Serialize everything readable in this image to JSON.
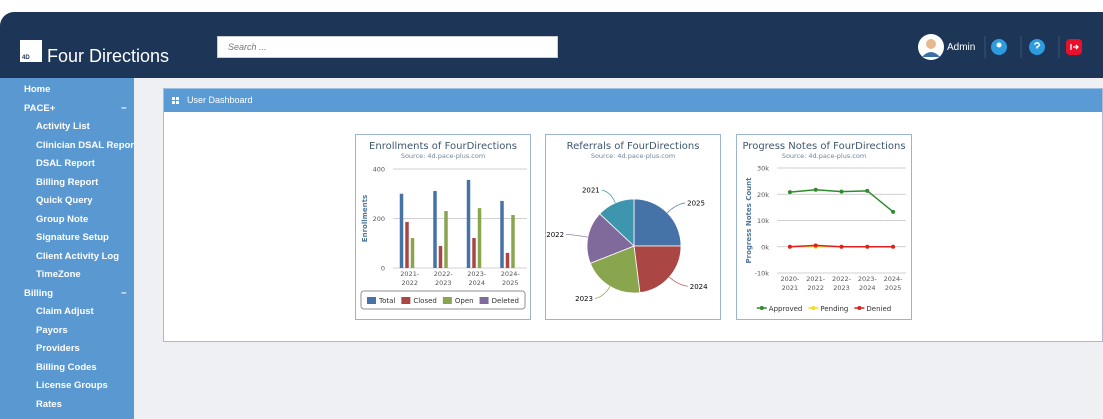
{
  "header": {
    "logo_badge": "4D",
    "logo": "Four Directions",
    "search_placeholder": "Search ...",
    "user": "Admin"
  },
  "sidebar": {
    "home": "Home",
    "groups": [
      {
        "title": "PACE+",
        "toggle": "−",
        "items": [
          "Activity List",
          "Clinician DSAL Report",
          "DSAL Report",
          "Billing Report",
          "Quick Query",
          "Group Note",
          "Signature Setup",
          "Client Activity Log",
          "TimeZone"
        ]
      },
      {
        "title": "Billing",
        "toggle": "−",
        "items": [
          "Claim Adjust",
          "Payors",
          "Providers",
          "Billing Codes",
          "License Groups",
          "Rates"
        ]
      }
    ]
  },
  "panel": {
    "title": "User Dashboard"
  },
  "chart_data": [
    {
      "type": "bar",
      "title": "Enrollments of FourDirections",
      "subtitle": "Source: 4d.pace-plus.com",
      "y_label": "Enrollments",
      "categories": [
        "2021-2022",
        "2022-2023",
        "2023-2024",
        "2024-2025"
      ],
      "series": [
        {
          "name": "Total",
          "color": "#4572a7",
          "values": [
            300,
            311,
            356,
            271
          ]
        },
        {
          "name": "Closed",
          "color": "#aa4643",
          "values": [
            186,
            89,
            121,
            61
          ]
        },
        {
          "name": "Open",
          "color": "#89a54e",
          "values": [
            121,
            230,
            242,
            214
          ]
        },
        {
          "name": "Deleted",
          "color": "#80699b",
          "values": [
            0,
            0,
            0,
            0
          ]
        }
      ],
      "ylim": [
        0,
        400
      ],
      "yticks": [
        0,
        200,
        400
      ],
      "grid": true,
      "legend": "bottom"
    },
    {
      "type": "pie",
      "title": "Referrals of FourDirections",
      "subtitle": "Source: 4d.pace-plus.com",
      "categories": [
        "2025",
        "2024",
        "2023",
        "2022",
        "2021"
      ],
      "values": [
        25,
        23,
        21,
        18,
        13
      ],
      "colors": [
        "#4572a7",
        "#aa4643",
        "#89a54e",
        "#80699b",
        "#3d96ae"
      ]
    },
    {
      "type": "line",
      "title": "Progress Notes of FourDirections",
      "subtitle": "Source: 4d.pace-plus.com",
      "y_label": "Progress Notes Count",
      "categories": [
        "2020-2021",
        "2021-2022",
        "2022-2023",
        "2023-2024",
        "2024-2025"
      ],
      "series": [
        {
          "name": "Approved",
          "color": "#2e8b2e",
          "values": [
            20800,
            21700,
            21000,
            21300,
            13300
          ]
        },
        {
          "name": "Pending",
          "color": "#f0e020",
          "values": [
            0,
            0,
            0,
            0,
            0
          ]
        },
        {
          "name": "Denied",
          "color": "#e02020",
          "values": [
            0,
            500,
            0,
            0,
            0
          ]
        }
      ],
      "ylim": [
        -10000,
        30000
      ],
      "yticks": [
        {
          "value": -10000,
          "label": "-10k"
        },
        {
          "value": 0,
          "label": "0k"
        },
        {
          "value": 10000,
          "label": "10k"
        },
        {
          "value": 20000,
          "label": "20k"
        },
        {
          "value": 30000,
          "label": "30k"
        }
      ],
      "grid": true,
      "legend": "bottom"
    }
  ]
}
